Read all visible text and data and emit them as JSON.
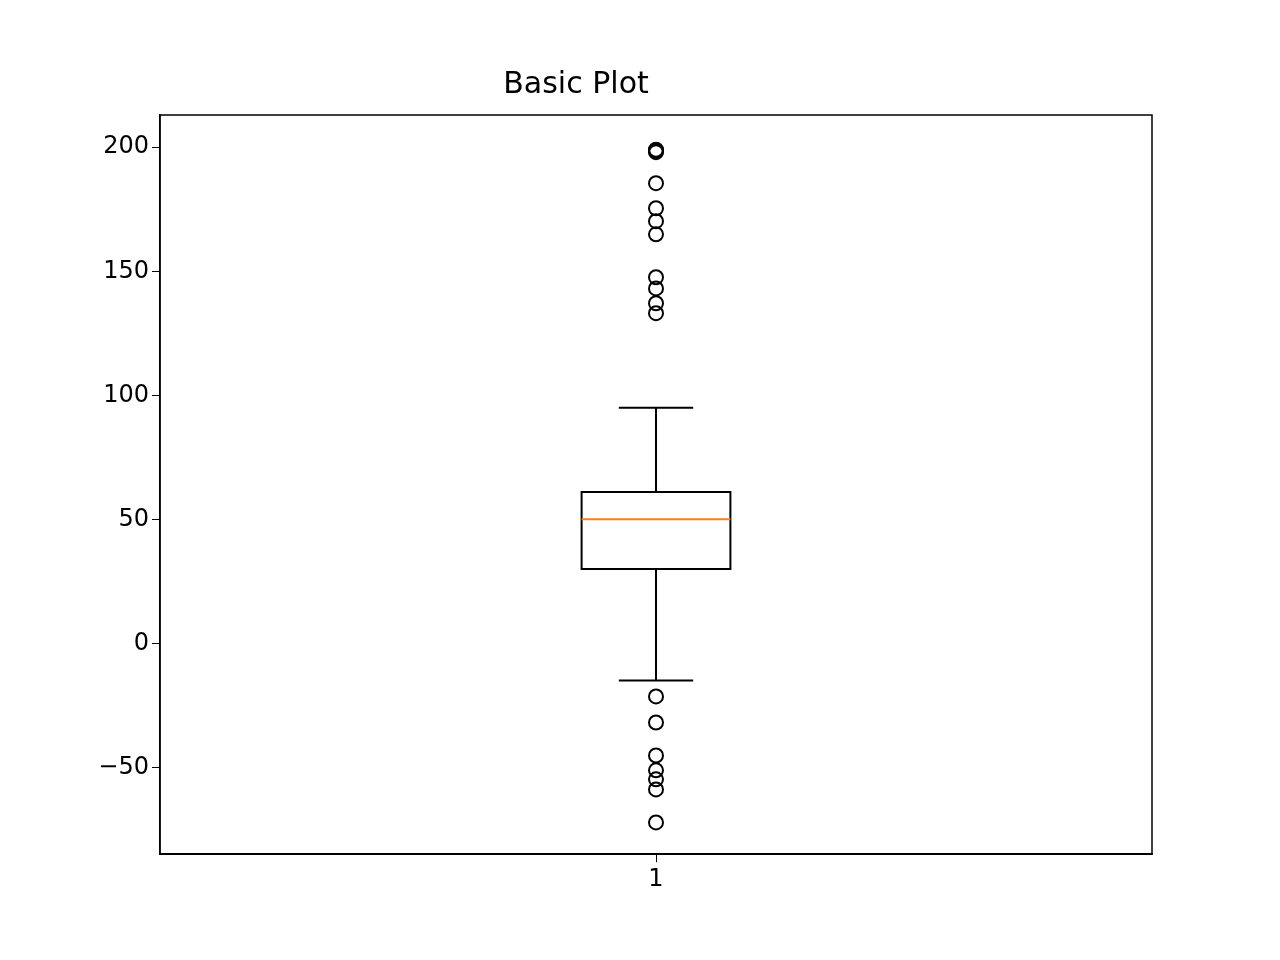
{
  "chart_data": {
    "type": "box",
    "title": "Basic Plot",
    "categories": [
      "1"
    ],
    "boxes": [
      {
        "low": -15,
        "q1": 30,
        "median": 50,
        "q3": 61,
        "high": 95,
        "outliers": [
          199,
          198.5,
          198,
          185.5,
          175.4,
          170.2,
          164.9,
          147.6,
          143.1,
          137.1,
          133.1,
          -21.4,
          -31.9,
          -45.2,
          -51.2,
          -54.8,
          -58.9,
          -72.2
        ]
      }
    ],
    "ylim": [
      -85,
      213
    ],
    "yticks": [
      {
        "value": -50,
        "label": "−50"
      },
      0,
      50,
      100,
      150,
      200
    ],
    "grid": false,
    "marker": "circle"
  }
}
